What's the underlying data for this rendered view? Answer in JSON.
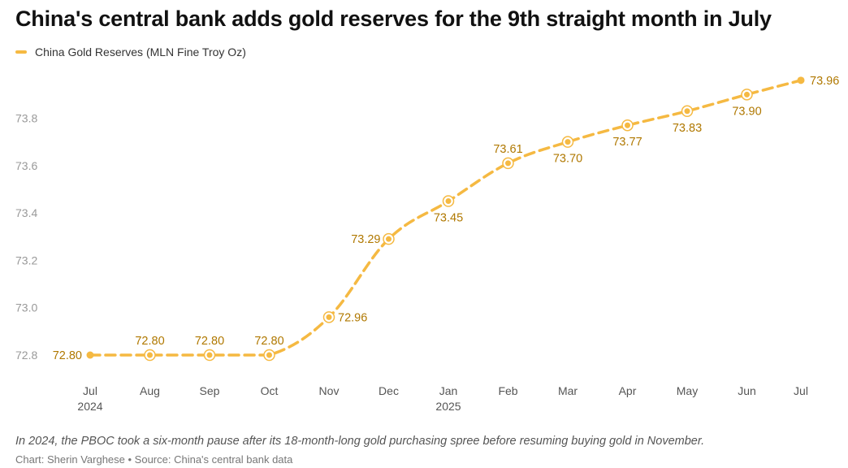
{
  "title": "China's central bank adds gold reserves for the 9th straight month in July",
  "legend": {
    "label": "China Gold Reserves (MLN Fine Troy Oz)"
  },
  "note": "In 2024, the PBOC took a six-month pause after its 18-month-long gold purchasing spree before resuming buying gold in November.",
  "source": "Chart: Sherin Varghese • Source: China's central bank data",
  "colors": {
    "series": "#F5B942",
    "label": "#B07800",
    "axis_text": "#999999"
  },
  "chart_data": {
    "type": "line",
    "title": "China's central bank adds gold reserves for the 9th straight month in July",
    "categories": [
      "Jul",
      "Aug",
      "Sep",
      "Oct",
      "Nov",
      "Dec",
      "Jan",
      "Feb",
      "Mar",
      "Apr",
      "May",
      "Jun",
      "Jul"
    ],
    "year_labels": [
      "2024",
      "",
      "",
      "",
      "",
      "",
      "2025",
      "",
      "",
      "",
      "",
      "",
      ""
    ],
    "series": [
      {
        "name": "China Gold Reserves (MLN Fine Troy Oz)",
        "values": [
          72.8,
          72.8,
          72.8,
          72.8,
          72.96,
          73.29,
          73.45,
          73.61,
          73.7,
          73.77,
          73.83,
          73.9,
          73.96
        ],
        "value_labels": [
          "72.80",
          "72.80",
          "72.80",
          "72.80",
          "72.96",
          "73.29",
          "73.45",
          "73.61",
          "73.70",
          "73.77",
          "73.83",
          "73.90",
          "73.96"
        ]
      }
    ],
    "y_ticks": [
      "72.8",
      "73.0",
      "73.2",
      "73.4",
      "73.6",
      "73.8"
    ],
    "ylim": [
      72.8,
      73.96
    ],
    "line_style": "dashed",
    "grid": false,
    "legend_position": "top-left"
  }
}
